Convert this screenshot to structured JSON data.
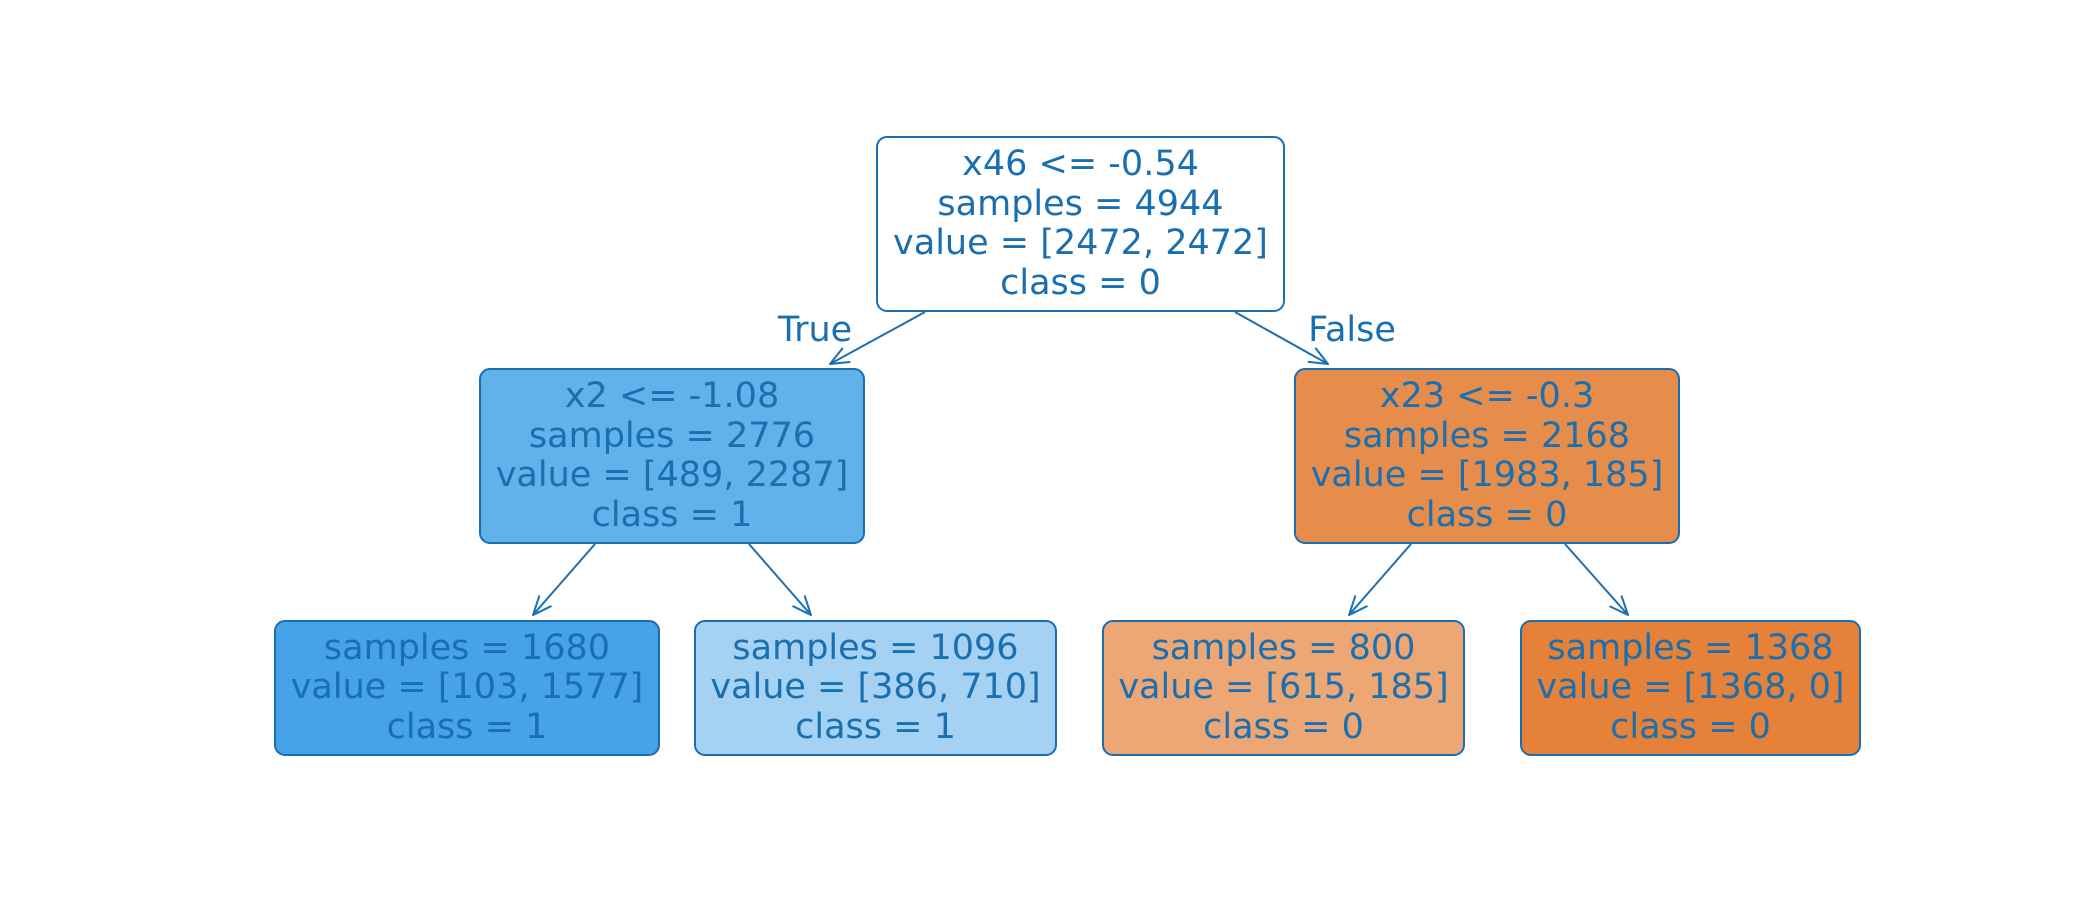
{
  "diagram": {
    "edge_color": "#1a6fb0",
    "text_color": "#1a6fb0",
    "class_colors": {
      "0": "#e58139",
      "1": "#399de5"
    },
    "nodes": [
      {
        "id": "root",
        "lines": [
          "x46 <= -0.54",
          "samples = 4944",
          "value = [2472, 2472]",
          "class = 0"
        ],
        "fill": "#ffffff"
      },
      {
        "id": "left",
        "lines": [
          "x2 <= -1.08",
          "samples = 2776",
          "value = [489, 2287]",
          "class = 1"
        ],
        "fill": "#61b1ea"
      },
      {
        "id": "right",
        "lines": [
          "x23 <= -0.3",
          "samples = 2168",
          "value = [1983, 185]",
          "class = 0"
        ],
        "fill": "#e78d4b"
      },
      {
        "id": "left-left",
        "lines": [
          "samples = 1680",
          "value = [103, 1577]",
          "class = 1"
        ],
        "fill": "#46a3e7"
      },
      {
        "id": "left-right",
        "lines": [
          "samples = 1096",
          "value = [386, 710]",
          "class = 1"
        ],
        "fill": "#a5d2f3"
      },
      {
        "id": "right-left",
        "lines": [
          "samples = 800",
          "value = [615, 185]",
          "class = 0"
        ],
        "fill": "#eda774"
      },
      {
        "id": "right-right",
        "lines": [
          "samples = 1368",
          "value = [1368, 0]",
          "class = 0"
        ],
        "fill": "#e58139"
      }
    ],
    "edges": [
      {
        "from": "root",
        "to": "left",
        "label": "True"
      },
      {
        "from": "root",
        "to": "right",
        "label": "False"
      },
      {
        "from": "left",
        "to": "left-left",
        "label": ""
      },
      {
        "from": "left",
        "to": "left-right",
        "label": ""
      },
      {
        "from": "right",
        "to": "right-left",
        "label": ""
      },
      {
        "from": "right",
        "to": "right-right",
        "label": ""
      }
    ]
  }
}
